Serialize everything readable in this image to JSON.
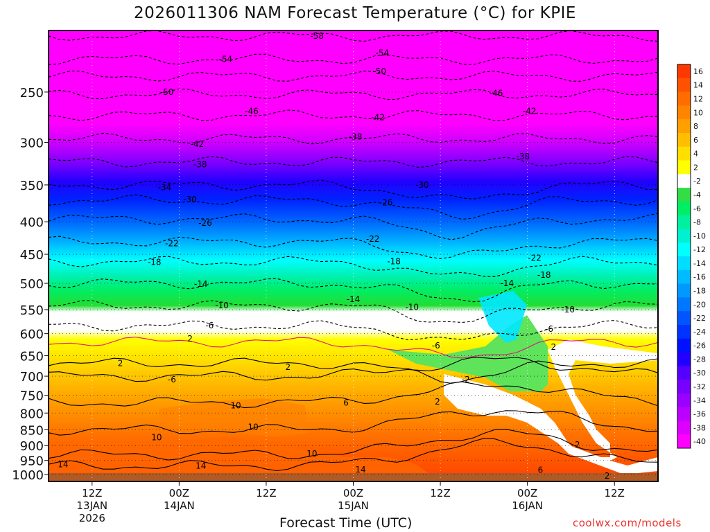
{
  "title": "2026011306 NAM Forecast Temperature (°C) for KPIE",
  "credit": "coolwx.com/models",
  "chart_data": {
    "type": "heatmap",
    "title": "2026011306 NAM Forecast Temperature (°C) for KPIE",
    "xlabel": "Forecast Time (UTC)",
    "ylabel": "",
    "x_range_hours": [
      0,
      84
    ],
    "y_range_hPa": [
      1025,
      200
    ],
    "y_scale": "log-pressure",
    "y_ticks": [
      250,
      300,
      350,
      400,
      450,
      500,
      550,
      600,
      650,
      700,
      750,
      800,
      850,
      900,
      950,
      1000
    ],
    "y_tick_labels": [
      "250",
      "300",
      "350",
      "400",
      "450",
      "500",
      "550",
      "600",
      "650",
      "700",
      "750",
      "800",
      "850",
      "900",
      "950",
      "1000"
    ],
    "x_ticks_hours": [
      6,
      18,
      30,
      42,
      54,
      66,
      78
    ],
    "x_tick_labels": [
      [
        "12Z",
        "13JAN",
        "2026"
      ],
      [
        "00Z",
        "14JAN"
      ],
      [
        "12Z"
      ],
      [
        "00Z",
        "15JAN"
      ],
      [
        "12Z"
      ],
      [
        "00Z",
        "16JAN"
      ],
      [
        "12Z"
      ]
    ],
    "grid": true,
    "colorbar": {
      "labels": [
        "16",
        "14",
        "12",
        "10",
        "8",
        "6",
        "4",
        "2",
        "-2",
        "-4",
        "-6",
        "-8",
        "-10",
        "-12",
        "-14",
        "-16",
        "-18",
        "-20",
        "-22",
        "-24",
        "-26",
        "-28",
        "-30",
        "-32",
        "-34",
        "-36",
        "-38",
        "-40"
      ],
      "colors": [
        "#ff3800",
        "#ff5200",
        "#ff6d00",
        "#ff8400",
        "#ffa000",
        "#ffbe00",
        "#ffdf00",
        "#ffff00",
        "#ffffff",
        "#33dd44",
        "#00ee66",
        "#00f0a0",
        "#00f0d0",
        "#00ffff",
        "#00ddff",
        "#00bbff",
        "#0099ff",
        "#0077ff",
        "#0055ff",
        "#0033ff",
        "#0011ff",
        "#2200ff",
        "#5500ff",
        "#7700ff",
        "#9900ff",
        "#bb00ff",
        "#dd00ff",
        "#ff00ff"
      ]
    },
    "contour_labels": [
      {
        "value": "-58",
        "hour": 37.0,
        "p": 204
      },
      {
        "value": "-54",
        "hour": 24.4,
        "p": 222
      },
      {
        "value": "-54",
        "hour": 46.0,
        "p": 217
      },
      {
        "value": "-50",
        "hour": 16.3,
        "p": 250
      },
      {
        "value": "-50",
        "hour": 45.6,
        "p": 232
      },
      {
        "value": "-46",
        "hour": 28.0,
        "p": 268
      },
      {
        "value": "-46",
        "hour": 61.7,
        "p": 251
      },
      {
        "value": "-42",
        "hour": 45.4,
        "p": 274
      },
      {
        "value": "-42",
        "hour": 66.3,
        "p": 268
      },
      {
        "value": "-42",
        "hour": 20.5,
        "p": 302
      },
      {
        "value": "-38",
        "hour": 42.3,
        "p": 294
      },
      {
        "value": "-38",
        "hour": 20.9,
        "p": 325
      },
      {
        "value": "-38",
        "hour": 65.4,
        "p": 316
      },
      {
        "value": "-34",
        "hour": 16.0,
        "p": 353
      },
      {
        "value": "-30",
        "hour": 19.5,
        "p": 369
      },
      {
        "value": "-30",
        "hour": 51.5,
        "p": 350
      },
      {
        "value": "-26",
        "hour": 21.6,
        "p": 402
      },
      {
        "value": "-26",
        "hour": 46.5,
        "p": 373
      },
      {
        "value": "-22",
        "hour": 17.0,
        "p": 433
      },
      {
        "value": "-22",
        "hour": 44.7,
        "p": 426
      },
      {
        "value": "-22",
        "hour": 67.0,
        "p": 456
      },
      {
        "value": "-18",
        "hour": 14.6,
        "p": 463
      },
      {
        "value": "-18",
        "hour": 47.6,
        "p": 462
      },
      {
        "value": "-18",
        "hour": 68.3,
        "p": 485
      },
      {
        "value": "-14",
        "hour": 21.0,
        "p": 501
      },
      {
        "value": "-14",
        "hour": 42.0,
        "p": 530
      },
      {
        "value": "-14",
        "hour": 63.2,
        "p": 500
      },
      {
        "value": "-10",
        "hour": 23.9,
        "p": 542
      },
      {
        "value": "-10",
        "hour": 50.1,
        "p": 545
      },
      {
        "value": "-10",
        "hour": 71.6,
        "p": 550
      },
      {
        "value": "-6",
        "hour": 22.2,
        "p": 583
      },
      {
        "value": "-6",
        "hour": 53.4,
        "p": 627
      },
      {
        "value": "-6",
        "hour": 69.0,
        "p": 590
      },
      {
        "value": "2",
        "hour": 19.5,
        "p": 611
      },
      {
        "value": "2",
        "hour": 69.6,
        "p": 630
      },
      {
        "value": "2",
        "hour": 9.9,
        "p": 668
      },
      {
        "value": "2",
        "hour": 33.0,
        "p": 677
      },
      {
        "value": "-2",
        "hour": 57.5,
        "p": 709
      },
      {
        "value": "2",
        "hour": 53.6,
        "p": 768
      },
      {
        "value": "-6",
        "hour": 17.0,
        "p": 709
      },
      {
        "value": "6",
        "hour": 41.0,
        "p": 771
      },
      {
        "value": "10",
        "hour": 25.8,
        "p": 779
      },
      {
        "value": "10",
        "hour": 28.2,
        "p": 842
      },
      {
        "value": "10",
        "hour": 14.9,
        "p": 874
      },
      {
        "value": "10",
        "hour": 36.3,
        "p": 927
      },
      {
        "value": "2",
        "hour": 72.9,
        "p": 897
      },
      {
        "value": "14",
        "hour": 2.0,
        "p": 964
      },
      {
        "value": "14",
        "hour": 21.0,
        "p": 969
      },
      {
        "value": "14",
        "hour": 43.0,
        "p": 982
      },
      {
        "value": "6",
        "hour": 67.8,
        "p": 984
      },
      {
        "value": "2",
        "hour": 77.0,
        "p": 1004
      }
    ]
  }
}
